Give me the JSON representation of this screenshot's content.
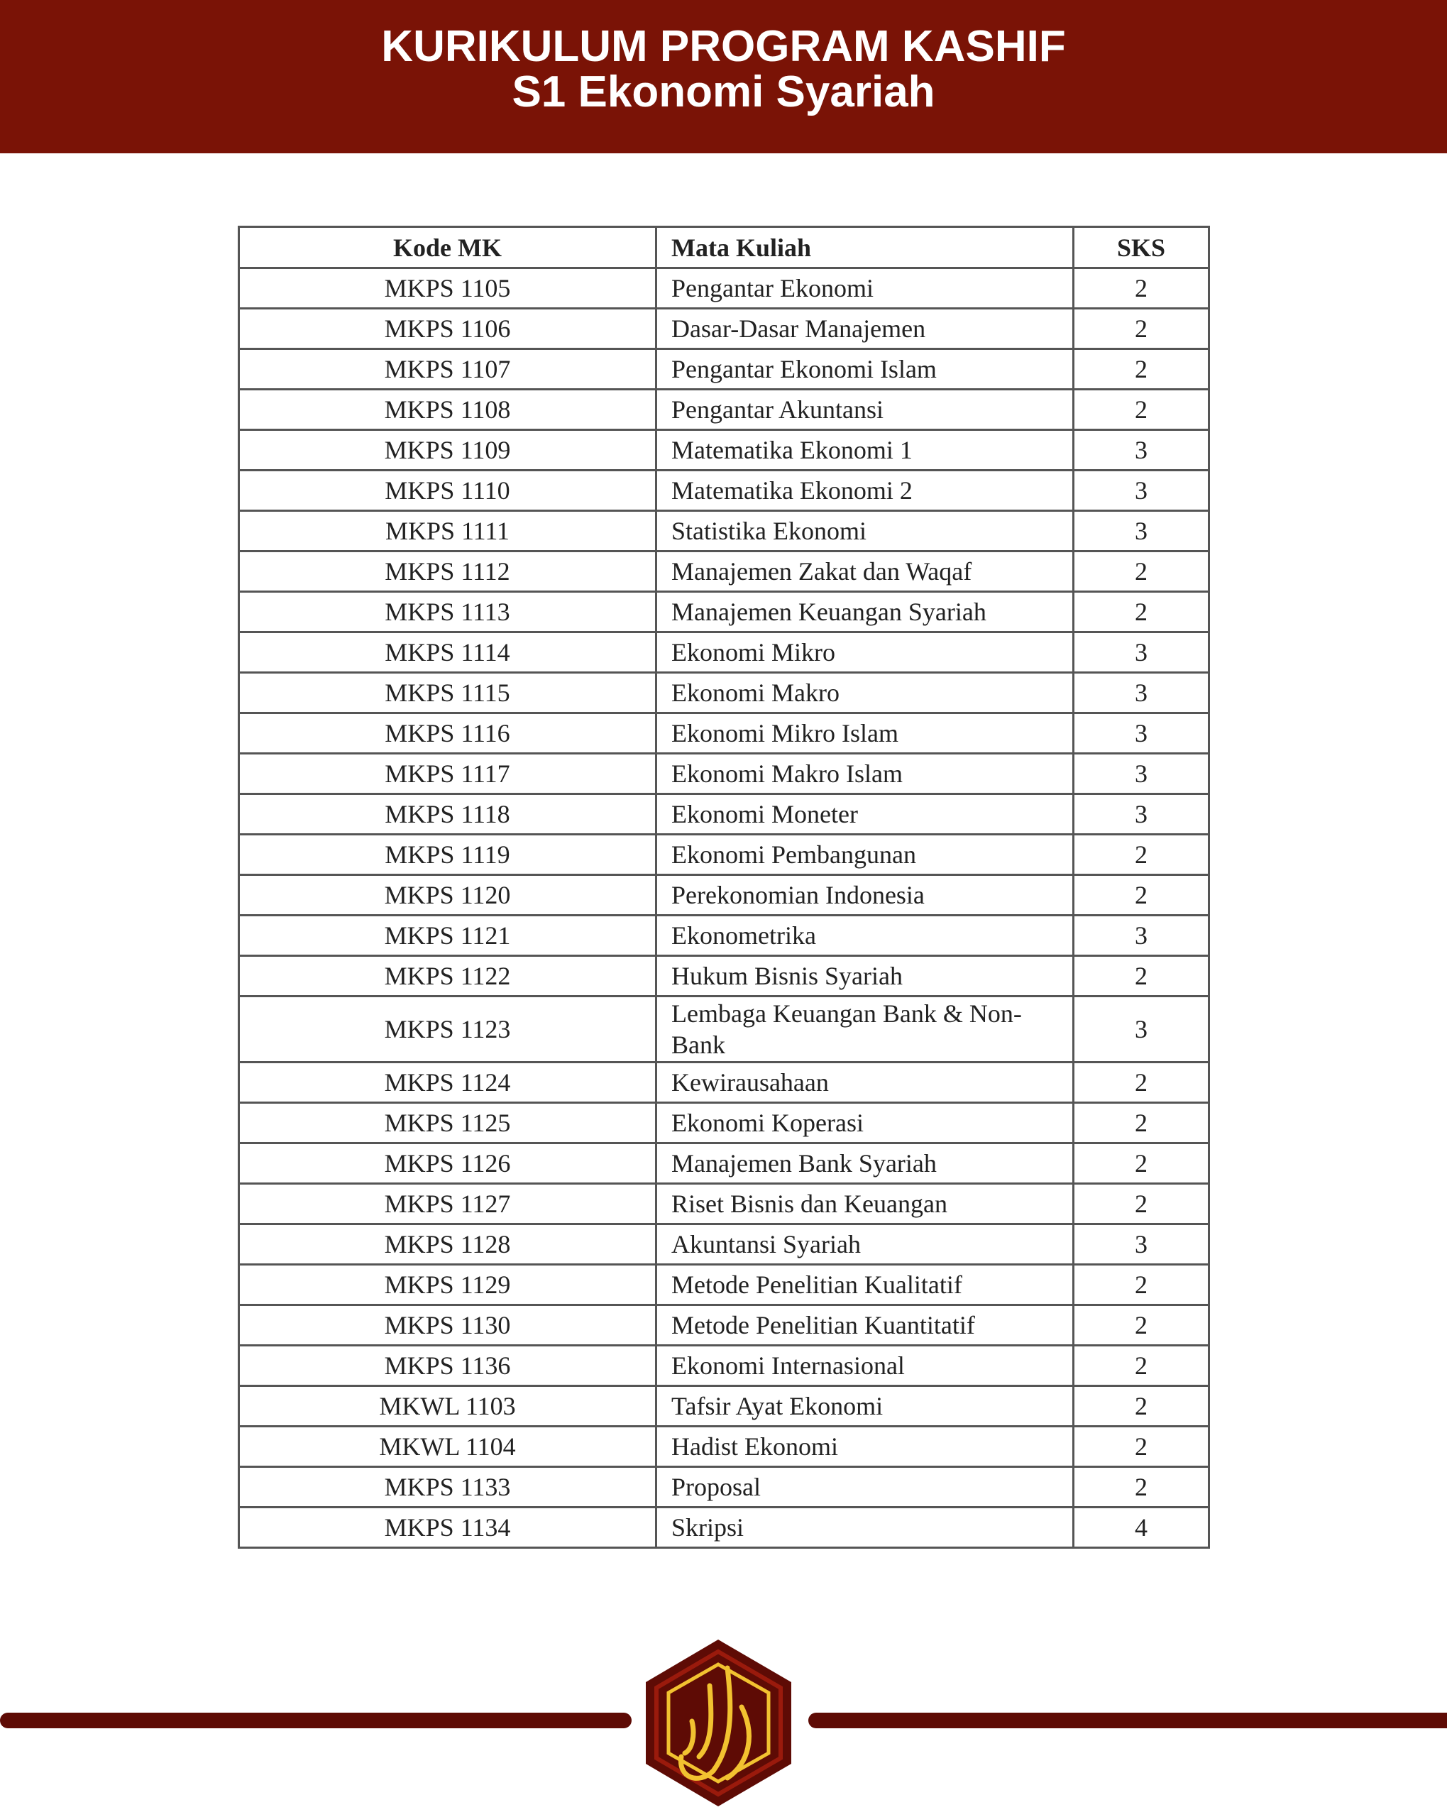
{
  "header": {
    "title": "KURIKULUM PROGRAM KASHIF",
    "subtitle": "S1 Ekonomi Syariah"
  },
  "table": {
    "columns": [
      "Kode MK",
      "Mata Kuliah",
      "SKS"
    ],
    "rows": [
      [
        "MKPS 1105",
        "Pengantar Ekonomi",
        "2"
      ],
      [
        "MKPS 1106",
        "Dasar-Dasar Manajemen",
        "2"
      ],
      [
        "MKPS 1107",
        "Pengantar Ekonomi Islam",
        "2"
      ],
      [
        "MKPS 1108",
        "Pengantar Akuntansi",
        "2"
      ],
      [
        "MKPS 1109",
        "Matematika Ekonomi 1",
        "3"
      ],
      [
        "MKPS 1110",
        "Matematika Ekonomi 2",
        "3"
      ],
      [
        "MKPS 1111",
        "Statistika Ekonomi",
        "3"
      ],
      [
        "MKPS 1112",
        "Manajemen Zakat dan Waqaf",
        "2"
      ],
      [
        "MKPS 1113",
        "Manajemen Keuangan Syariah",
        "2"
      ],
      [
        "MKPS 1114",
        "Ekonomi Mikro",
        "3"
      ],
      [
        "MKPS 1115",
        "Ekonomi Makro",
        "3"
      ],
      [
        "MKPS 1116",
        "Ekonomi Mikro Islam",
        "3"
      ],
      [
        "MKPS 1117",
        "Ekonomi Makro Islam",
        "3"
      ],
      [
        "MKPS 1118",
        "Ekonomi Moneter",
        "3"
      ],
      [
        "MKPS 1119",
        "Ekonomi Pembangunan",
        "2"
      ],
      [
        "MKPS 1120",
        "Perekonomian Indonesia",
        "2"
      ],
      [
        "MKPS 1121",
        "Ekonometrika",
        "3"
      ],
      [
        "MKPS 1122",
        "Hukum Bisnis Syariah",
        "2"
      ],
      [
        "MKPS 1123",
        "Lembaga Keuangan Bank & Non-Bank",
        "3"
      ],
      [
        "MKPS 1124",
        "Kewirausahaan",
        "2"
      ],
      [
        "MKPS 1125",
        "Ekonomi Koperasi",
        "2"
      ],
      [
        "MKPS 1126",
        "Manajemen Bank Syariah",
        "2"
      ],
      [
        "MKPS 1127",
        "Riset Bisnis dan Keuangan",
        "2"
      ],
      [
        "MKPS 1128",
        "Akuntansi Syariah",
        "3"
      ],
      [
        "MKPS 1129",
        "Metode Penelitian Kualitatif",
        "2"
      ],
      [
        "MKPS 1130",
        "Metode Penelitian Kuantitatif",
        "2"
      ],
      [
        "MKPS 1136",
        "Ekonomi Internasional",
        "2"
      ],
      [
        "MKWL 1103",
        "Tafsir Ayat Ekonomi",
        "2"
      ],
      [
        "MKWL 1104",
        "Hadist Ekonomi",
        "2"
      ],
      [
        "MKPS 1133",
        "Proposal",
        "2"
      ],
      [
        "MKPS 1134",
        "Skripsi",
        "4"
      ]
    ]
  },
  "footer": {
    "logo": "Kashif Arabic calligraphy hexagon logo",
    "colors": {
      "header": "#7a1306",
      "logo_bg": "#5e0b05",
      "logo_gold": "#f2c230"
    }
  }
}
